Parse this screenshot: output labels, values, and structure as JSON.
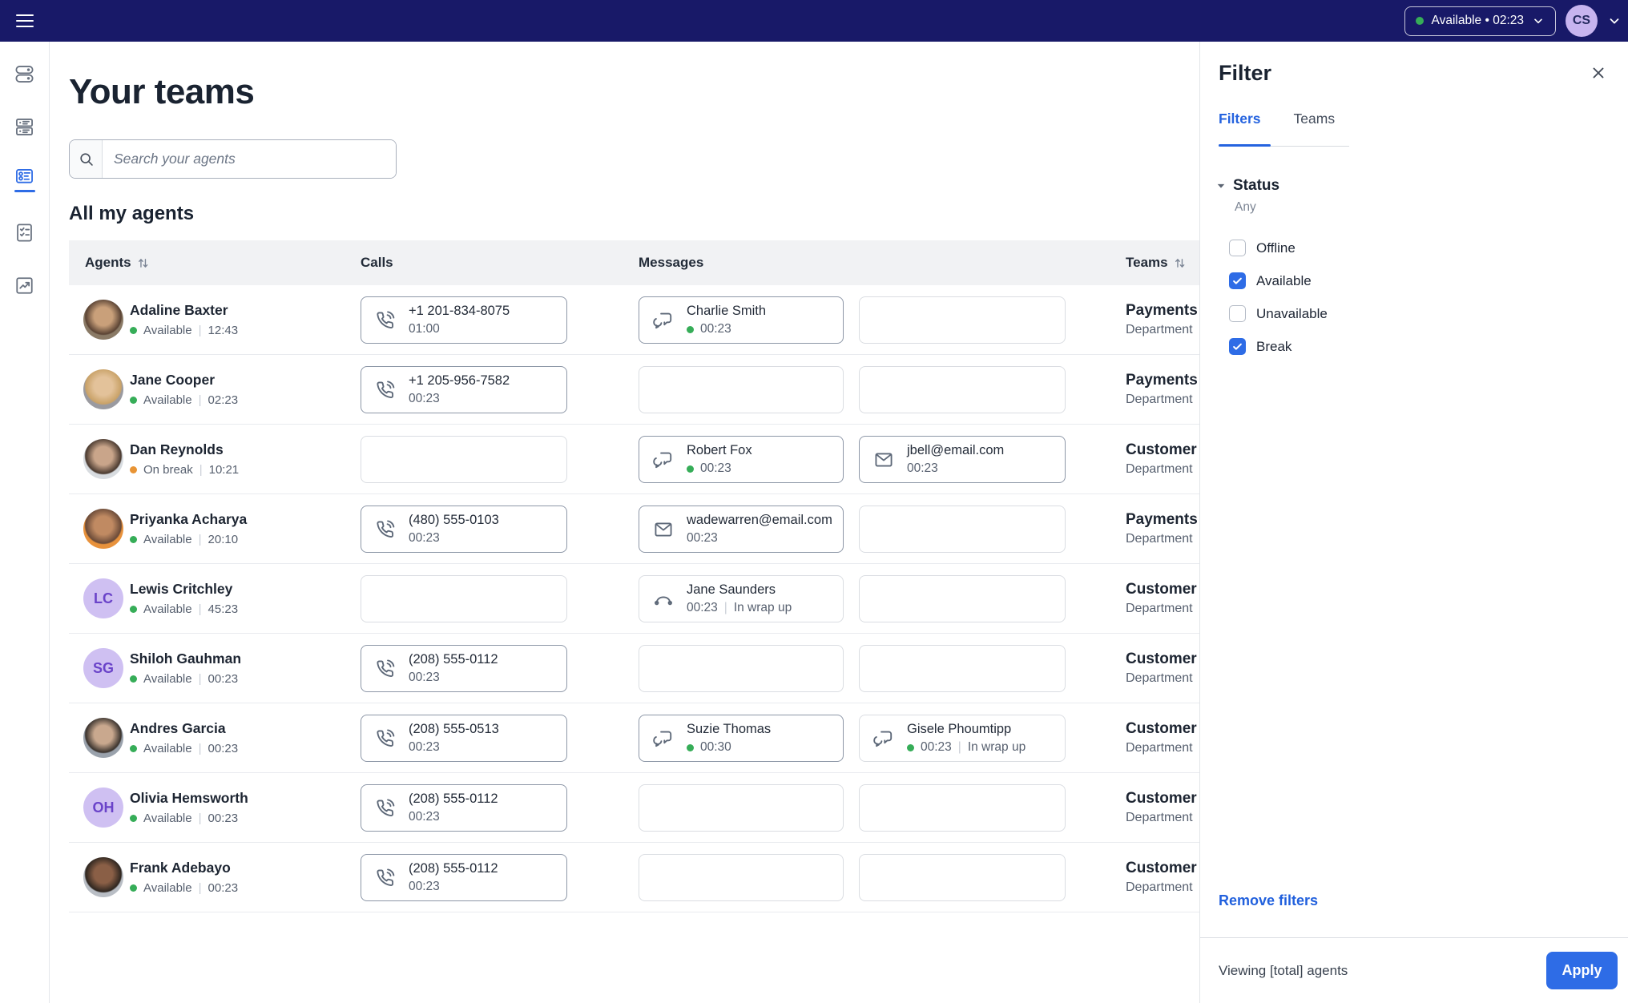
{
  "colors": {
    "navbar": "#181968",
    "accent": "#2e6ce6",
    "available": "#36ad58",
    "break": "#e89435"
  },
  "navbar": {
    "status_label": "Available • 02:23",
    "avatar_initials": "CS"
  },
  "sidebar": {
    "items": [
      {
        "icon": "toggles",
        "active": false
      },
      {
        "icon": "cards",
        "active": false
      },
      {
        "icon": "agent-list",
        "active": true
      },
      {
        "icon": "checklist",
        "active": false
      },
      {
        "icon": "chart",
        "active": false
      }
    ]
  },
  "page": {
    "title": "Your teams",
    "search_placeholder": "Search your agents",
    "section_title": "All my agents"
  },
  "table": {
    "headers": {
      "agents": "Agents",
      "calls": "Calls",
      "messages": "Messages",
      "teams": "Teams"
    },
    "rows": [
      {
        "name": "Adaline Baxter",
        "status": "Available",
        "status_kind": "available",
        "time": "12:43",
        "avatar": {
          "kind": "photo",
          "colors": [
            "#c9a07a",
            "#5a4334",
            "#8a7a66"
          ]
        },
        "call": {
          "number": "+1 201-834-8075",
          "time": "01:00",
          "active": true
        },
        "msg1": {
          "kind": "chat",
          "line1": "Charlie Smith",
          "dot": true,
          "time": "00:23",
          "suffix": null,
          "active": true
        },
        "msg2": null,
        "team": {
          "name": "Payments",
          "sub": "Department"
        }
      },
      {
        "name": "Jane Cooper",
        "status": "Available",
        "status_kind": "available",
        "time": "02:23",
        "avatar": {
          "kind": "photo",
          "colors": [
            "#e3c29a",
            "#c9a268",
            "#9a9aa0"
          ]
        },
        "call": {
          "number": "+1 205-956-7582",
          "time": "00:23",
          "active": true
        },
        "msg1": null,
        "msg2": null,
        "team": {
          "name": "Payments",
          "sub": "Department"
        }
      },
      {
        "name": "Dan Reynolds",
        "status": "On break",
        "status_kind": "break",
        "time": "10:21",
        "avatar": {
          "kind": "photo",
          "colors": [
            "#c9a58a",
            "#4a3a30",
            "#d8dce0"
          ]
        },
        "call": null,
        "msg1": {
          "kind": "chat",
          "line1": "Robert Fox",
          "dot": true,
          "time": "00:23",
          "suffix": null,
          "active": true
        },
        "msg2": {
          "kind": "email",
          "line1": "jbell@email.com",
          "dot": false,
          "time": "00:23",
          "suffix": null,
          "active": true
        },
        "team": {
          "name": "Customer",
          "sub": "Department"
        }
      },
      {
        "name": "Priyanka Acharya",
        "status": "Available",
        "status_kind": "available",
        "time": "20:10",
        "avatar": {
          "kind": "photo",
          "colors": [
            "#c08a62",
            "#6a4a38",
            "#e8923c"
          ]
        },
        "call": {
          "number": "(480) 555-0103",
          "time": "00:23",
          "active": true
        },
        "msg1": {
          "kind": "email",
          "line1": "wadewarren@email.com",
          "dot": false,
          "time": "00:23",
          "suffix": null,
          "active": true
        },
        "msg2": null,
        "team": {
          "name": "Payments",
          "sub": "Department"
        }
      },
      {
        "name": "Lewis Critchley",
        "status": "Available",
        "status_kind": "available",
        "time": "45:23",
        "avatar": {
          "kind": "initials",
          "initials": "LC"
        },
        "call": null,
        "msg1": {
          "kind": "wrapup",
          "line1": "Jane Saunders",
          "dot": false,
          "time": "00:23",
          "suffix": "In wrap up",
          "active": false
        },
        "msg2": null,
        "team": {
          "name": "Customer",
          "sub": "Department"
        }
      },
      {
        "name": "Shiloh Gauhman",
        "status": "Available",
        "status_kind": "available",
        "time": "00:23",
        "avatar": {
          "kind": "initials",
          "initials": "SG"
        },
        "call": {
          "number": "(208) 555-0112",
          "time": "00:23",
          "active": true
        },
        "msg1": null,
        "msg2": null,
        "team": {
          "name": "Customer",
          "sub": "Department"
        }
      },
      {
        "name": "Andres Garcia",
        "status": "Available",
        "status_kind": "available",
        "time": "00:23",
        "avatar": {
          "kind": "photo",
          "colors": [
            "#c9a88e",
            "#3a332e",
            "#9aa2ac"
          ]
        },
        "call": {
          "number": "(208) 555-0513",
          "time": "00:23",
          "active": true
        },
        "msg1": {
          "kind": "chat",
          "line1": "Suzie Thomas",
          "dot": true,
          "time": "00:30",
          "suffix": null,
          "active": true
        },
        "msg2": {
          "kind": "chat",
          "line1": "Gisele Phoumtipp",
          "dot": true,
          "time": "00:23",
          "suffix": "In wrap up",
          "active": false
        },
        "team": {
          "name": "Customer",
          "sub": "Department"
        }
      },
      {
        "name": "Olivia Hemsworth",
        "status": "Available",
        "status_kind": "available",
        "time": "00:23",
        "avatar": {
          "kind": "initials",
          "initials": "OH"
        },
        "call": {
          "number": "(208) 555-0112",
          "time": "00:23",
          "active": true
        },
        "msg1": null,
        "msg2": null,
        "team": {
          "name": "Customer",
          "sub": "Department"
        }
      },
      {
        "name": "Frank Adebayo",
        "status": "Available",
        "status_kind": "available",
        "time": "00:23",
        "avatar": {
          "kind": "photo",
          "colors": [
            "#8a5f46",
            "#2e2620",
            "#b9bec5"
          ]
        },
        "call": {
          "number": "(208) 555-0112",
          "time": "00:23",
          "active": true
        },
        "msg1": null,
        "msg2": null,
        "team": {
          "name": "Customer",
          "sub": "Department"
        }
      }
    ]
  },
  "filter_panel": {
    "title": "Filter",
    "tabs": [
      "Filters",
      "Teams"
    ],
    "active_tab": "Filters",
    "status": {
      "label": "Status",
      "value": "Any",
      "options": [
        {
          "label": "Offline",
          "checked": false
        },
        {
          "label": "Available",
          "checked": true
        },
        {
          "label": "Unavailable",
          "checked": false
        },
        {
          "label": "Break",
          "checked": true
        }
      ]
    },
    "remove_label": "Remove filters",
    "footer": {
      "viewing": "Viewing [total] agents",
      "apply": "Apply"
    }
  }
}
